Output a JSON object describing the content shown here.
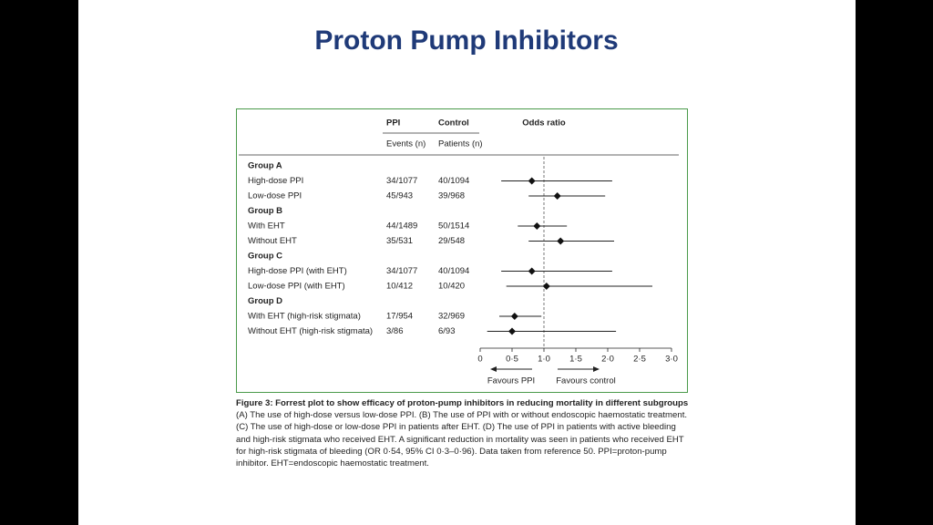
{
  "slide_title": "Proton Pump Inhibitors",
  "chart_data": {
    "type": "forest",
    "headers": {
      "ppi": "PPI",
      "control": "Control",
      "odds_ratio": "Odds ratio",
      "ppi_sub": "Events (n)",
      "control_sub": "Patients (n)"
    },
    "groups": [
      {
        "name": "Group A",
        "rows": [
          {
            "label": "High-dose PPI",
            "ppi": "34/1077",
            "control": "40/1094",
            "or": 0.81,
            "ci": [
              0.33,
              2.07
            ]
          },
          {
            "label": "Low-dose PPI",
            "ppi": "45/943",
            "control": "39/968",
            "or": 1.21,
            "ci": [
              0.76,
              1.96
            ]
          }
        ]
      },
      {
        "name": "Group B",
        "rows": [
          {
            "label": "With EHT",
            "ppi": "44/1489",
            "control": "50/1514",
            "or": 0.89,
            "ci": [
              0.59,
              1.36
            ]
          },
          {
            "label": "Without EHT",
            "ppi": "35/531",
            "control": "29/548",
            "or": 1.26,
            "ci": [
              0.76,
              2.1
            ]
          }
        ]
      },
      {
        "name": "Group C",
        "rows": [
          {
            "label": "High-dose PPI (with EHT)",
            "ppi": "34/1077",
            "control": "40/1094",
            "or": 0.81,
            "ci": [
              0.33,
              2.07
            ]
          },
          {
            "label": "Low-dose PPI (with EHT)",
            "ppi": "10/412",
            "control": "10/420",
            "or": 1.04,
            "ci": [
              0.41,
              2.7
            ]
          }
        ]
      },
      {
        "name": "Group D",
        "rows": [
          {
            "label": "With EHT (high-risk stigmata)",
            "ppi": "17/954",
            "control": "32/969",
            "or": 0.54,
            "ci": [
              0.3,
              0.96
            ]
          },
          {
            "label": "Without EHT (high-risk stigmata)",
            "ppi": "3/86",
            "control": "6/93",
            "or": 0.5,
            "ci": [
              0.11,
              2.13
            ]
          }
        ]
      }
    ],
    "xlim": [
      0,
      3
    ],
    "xticks": [
      0,
      {
        "value": 0.5,
        "label": "0·5"
      },
      {
        "value": 1,
        "label": "1·0"
      },
      {
        "value": 1.5,
        "label": "1·5"
      },
      {
        "value": 2,
        "label": "2·0"
      },
      {
        "value": 2.5,
        "label": "2·5"
      },
      {
        "value": 3,
        "label": "3·0"
      }
    ],
    "reference": 1,
    "favours_left": "Favours PPI",
    "favours_right": "Favours control"
  },
  "caption": {
    "title": "Figure 3: Forrest plot to show efficacy of proton-pump inhibitors in reducing mortality in different subgroups",
    "body": "(A) The use of high-dose versus low-dose PPI. (B) The use of PPI with or without endoscopic haemostatic treatment. (C) The use of high-dose or low-dose PPI in patients after EHT. (D) The use of PPI in patients with active bleeding and high-risk stigmata who received EHT. A significant reduction in mortality was seen in patients who received EHT for high-risk stigmata of bleeding (OR 0·54, 95% CI 0·3–0·96). Data taken from reference 50. PPI=proton-pump inhibitor. EHT=endoscopic haemostatic treatment."
  }
}
